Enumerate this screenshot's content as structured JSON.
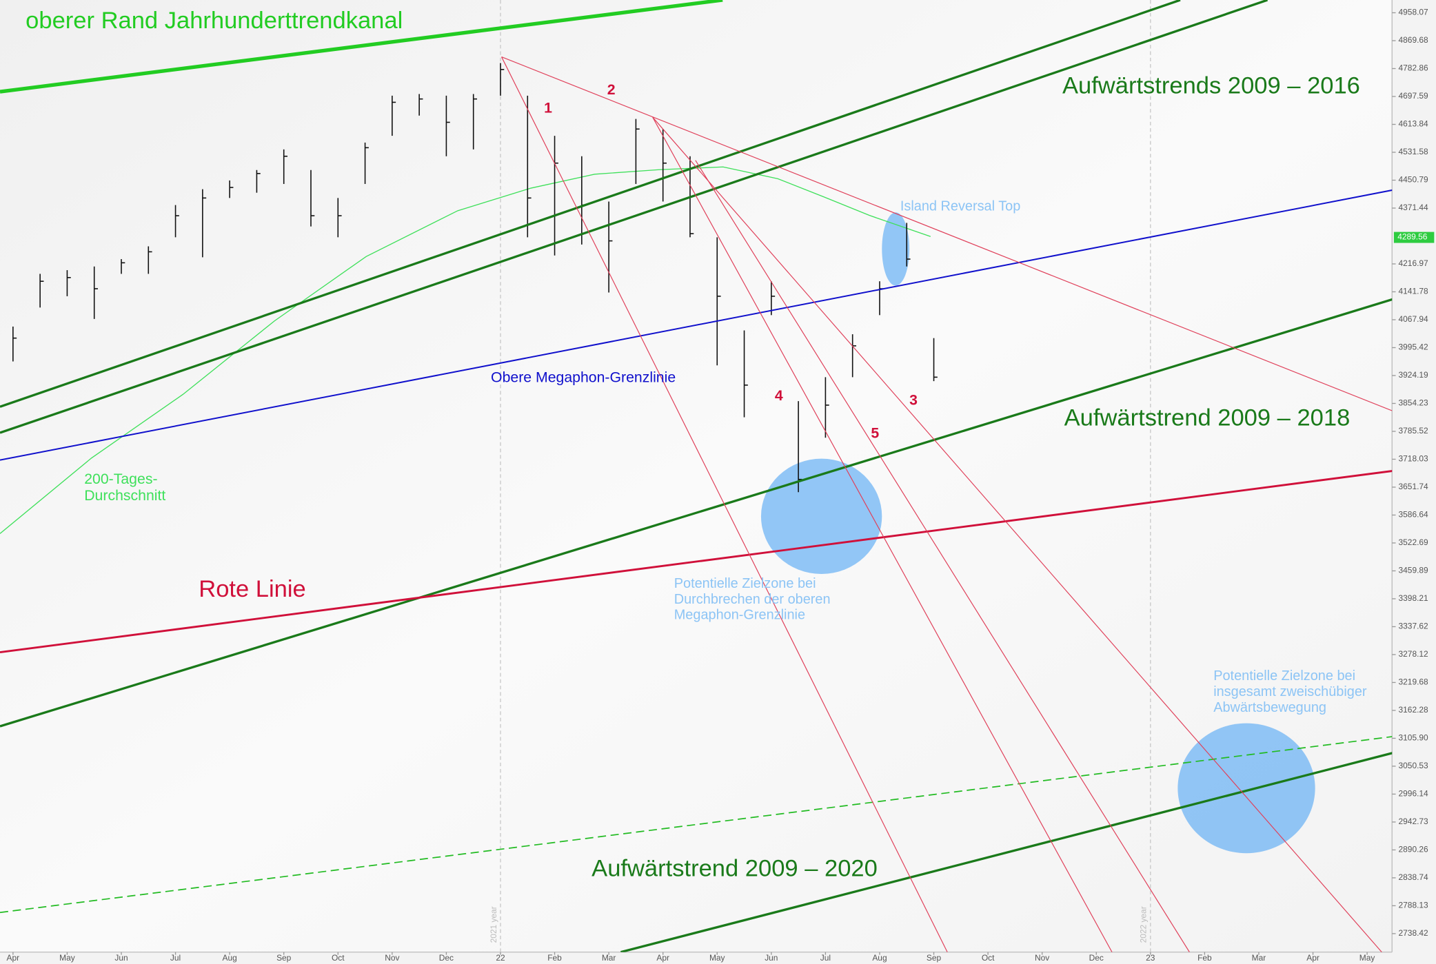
{
  "chart_data": {
    "type": "ohlc",
    "log_scale": true,
    "xlim": [
      -0.24,
      25.46
    ],
    "xticks": [
      {
        "value": 0,
        "label": "Apr"
      },
      {
        "value": 1,
        "label": "May"
      },
      {
        "value": 2,
        "label": "Jun"
      },
      {
        "value": 3,
        "label": "Jul"
      },
      {
        "value": 4,
        "label": "Aug"
      },
      {
        "value": 5,
        "label": "Sep"
      },
      {
        "value": 6,
        "label": "Oct"
      },
      {
        "value": 7,
        "label": "Nov"
      },
      {
        "value": 8,
        "label": "Dec"
      },
      {
        "value": 9,
        "label": "22"
      },
      {
        "value": 10,
        "label": "Feb"
      },
      {
        "value": 11,
        "label": "Mar"
      },
      {
        "value": 12,
        "label": "Apr"
      },
      {
        "value": 13,
        "label": "May"
      },
      {
        "value": 14,
        "label": "Jun"
      },
      {
        "value": 15,
        "label": "Jul"
      },
      {
        "value": 16,
        "label": "Aug"
      },
      {
        "value": 17,
        "label": "Sep"
      },
      {
        "value": 18,
        "label": "Oct"
      },
      {
        "value": 19,
        "label": "Nov"
      },
      {
        "value": 20,
        "label": "Dec"
      },
      {
        "value": 21,
        "label": "23"
      },
      {
        "value": 22,
        "label": "Feb"
      },
      {
        "value": 23,
        "label": "Mar"
      },
      {
        "value": 24,
        "label": "Apr"
      },
      {
        "value": 25,
        "label": "May"
      }
    ],
    "ylim": [
      2706,
      4999
    ],
    "yticks": [
      4958.07,
      4869.68,
      4782.86,
      4697.59,
      4613.84,
      4531.58,
      4450.79,
      4371.44,
      4216.97,
      4141.78,
      4067.94,
      3995.42,
      3924.19,
      3854.23,
      3785.52,
      3718.03,
      3651.74,
      3586.64,
      3522.69,
      3459.89,
      3398.21,
      3337.62,
      3278.12,
      3219.68,
      3162.28,
      {
        "value": 3105.9,
        "label": "3105.90"
      },
      3050.53,
      2996.14,
      2942.73,
      2890.26,
      2838.74,
      2788.13,
      2738.42
    ],
    "last_price": 4289.56,
    "last_price_color": "#2ecc40",
    "year_labels": [
      "2021 year",
      "2022 year"
    ],
    "bars": {
      "color": "#111111",
      "x": [
        0,
        0.5,
        1,
        1.5,
        2,
        2.5,
        3,
        3.5,
        4,
        4.5,
        5,
        5.5,
        6,
        6.5,
        7,
        7.5,
        8,
        8.5,
        9,
        9.5,
        10,
        10.5,
        11,
        11.5,
        12,
        12.5,
        13,
        13.5,
        14,
        14.5,
        15,
        15.5,
        16,
        16.5,
        17
      ],
      "high": [
        4050,
        4190,
        4200,
        4210,
        4230,
        4265,
        4380,
        4425,
        4450,
        4480,
        4540,
        4480,
        4400,
        4560,
        4700,
        4705,
        4700,
        4705,
        4800,
        4700,
        4580,
        4520,
        4390,
        4630,
        4600,
        4520,
        4290,
        4040,
        4170,
        3860,
        3920,
        4030,
        4170,
        4330,
        4020
      ],
      "low": [
        3960,
        4100,
        4130,
        4070,
        4190,
        4190,
        4290,
        4235,
        4400,
        4415,
        4440,
        4320,
        4290,
        4440,
        4580,
        4640,
        4520,
        4540,
        4700,
        4290,
        4240,
        4270,
        4140,
        4440,
        4390,
        4290,
        3950,
        3820,
        4080,
        3640,
        3770,
        3920,
        4080,
        4210,
        3910
      ],
      "close": [
        4020,
        4170,
        4180,
        4150,
        4220,
        4250,
        4350,
        4400,
        4430,
        4470,
        4520,
        4350,
        4350,
        4545,
        4680,
        4690,
        4620,
        4690,
        4780,
        4400,
        4500,
        4380,
        4280,
        4600,
        4500,
        4300,
        4130,
        3900,
        4130,
        3670,
        3850,
        4000,
        4150,
        4230,
        3920
      ]
    },
    "moving_average": {
      "color": "#3ee05a",
      "x": [
        -0.24,
        1.45,
        3.14,
        4.83,
        6.52,
        8.21,
        9.56,
        10.74,
        11.93,
        13.11,
        14.12,
        14.97,
        15.81,
        16.94
      ],
      "values": [
        3544,
        3721,
        3877,
        4065,
        4237,
        4364,
        4428,
        4468,
        4481,
        4489,
        4455,
        4403,
        4351,
        4292
      ]
    },
    "trendlines": [
      {
        "color": "#22cc22",
        "width": 4,
        "dashed": false,
        "x": [
          -0.24,
          13.1
        ],
        "y": [
          4712,
          4999
        ]
      },
      {
        "color": "#1a7a1a",
        "width": 2.5,
        "dashed": false,
        "x": [
          -0.24,
          21.55
        ],
        "y": [
          3846,
          4999
        ]
      },
      {
        "color": "#1a7a1a",
        "width": 2.5,
        "dashed": false,
        "x": [
          -0.24,
          23.16
        ],
        "y": [
          3782,
          4999
        ]
      },
      {
        "color": "#1010cc",
        "width": 1.5,
        "dashed": false,
        "x": [
          -0.24,
          25.52
        ],
        "y": [
          3716,
          4424
        ]
      },
      {
        "color": "#1a7a1a",
        "width": 2.5,
        "dashed": false,
        "x": [
          -0.24,
          25.52
        ],
        "y": [
          3130,
          4124
        ]
      },
      {
        "color": "#d0103a",
        "width": 2.2,
        "dashed": false,
        "x": [
          -0.24,
          25.52
        ],
        "y": [
          3283,
          3691
        ]
      },
      {
        "color": "#22bb22",
        "width": 1.3,
        "dashed": true,
        "x": [
          -0.24,
          25.52
        ],
        "y": [
          2776,
          3110
        ]
      },
      {
        "color": "#1a7a1a",
        "width": 2.5,
        "dashed": false,
        "x": [
          11.22,
          25.52
        ],
        "y": [
          2706,
          3078
        ]
      },
      {
        "color": "#e0405a",
        "width": 0.9,
        "dashed": false,
        "x": [
          9.02,
          25.52
        ],
        "y": [
          4819,
          3833
        ]
      },
      {
        "color": "#e0405a",
        "width": 0.9,
        "dashed": false,
        "x": [
          9.02,
          17.25
        ],
        "y": [
          4819,
          2706
        ]
      },
      {
        "color": "#e0405a",
        "width": 0.9,
        "dashed": false,
        "x": [
          11.81,
          20.29
        ],
        "y": [
          4635,
          2706
        ]
      },
      {
        "color": "#e0405a",
        "width": 0.9,
        "dashed": false,
        "x": [
          12.6,
          21.72
        ],
        "y": [
          4508,
          2706
        ]
      },
      {
        "color": "#e0405a",
        "width": 0.9,
        "dashed": false,
        "x": [
          11.81,
          25.27
        ],
        "y": [
          4635,
          2706
        ]
      }
    ],
    "annotations": [
      {
        "lines": [
          "oberer Rand Jahrhunderttrendkanal"
        ],
        "color": "#22cc22"
      },
      {
        "lines": [
          "Aufwärtstrends 2009 – 2016"
        ],
        "color": "#1a7a1a"
      },
      {
        "lines": [
          "Island Reversal Top"
        ],
        "color": "#8cc4f5"
      },
      {
        "lines": [
          "Obere Megaphon-Grenzlinie"
        ],
        "color": "#1010cc"
      },
      {
        "lines": [
          "Aufwärtstrend 2009 – 2018"
        ],
        "color": "#1a7a1a"
      },
      {
        "lines": [
          "200-Tages-",
          "Durchschnitt"
        ],
        "color": "#3ee05a"
      },
      {
        "lines": [
          "Rote Linie"
        ],
        "color": "#d0103a"
      },
      {
        "lines": [
          "Potentielle Zielzone bei",
          "Durchbrechen der oberen",
          "Megaphon-Grenzlinie"
        ],
        "color": "#8cc4f5"
      },
      {
        "lines": [
          "Potentielle Zielzone bei",
          "insgesamt zweischübiger",
          "Abwärtsbewegung"
        ],
        "color": "#8cc4f5"
      },
      {
        "lines": [
          "Aufwärtstrend 2009 – 2020"
        ],
        "color": "#1a7a1a"
      },
      {
        "lines": [
          "1"
        ],
        "color": "#d0103a"
      },
      {
        "lines": [
          "2"
        ],
        "color": "#d0103a"
      },
      {
        "lines": [
          "3"
        ],
        "color": "#d0103a"
      },
      {
        "lines": [
          "4"
        ],
        "color": "#d0103a"
      },
      {
        "lines": [
          "5"
        ],
        "color": "#d0103a"
      }
    ]
  }
}
